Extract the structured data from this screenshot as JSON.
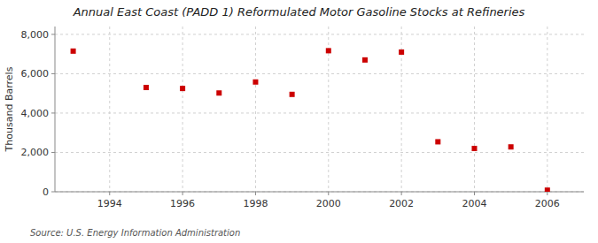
{
  "chart_data": {
    "type": "scatter",
    "title": "Annual East Coast (PADD 1) Reformulated Motor Gasoline Stocks at Refineries",
    "y_label": "Thousand Barrels",
    "source": "Source: U.S. Energy Information Administration",
    "x": [
      1993,
      1995,
      1996,
      1997,
      1998,
      1999,
      2000,
      2001,
      2002,
      2003,
      2004,
      2005,
      2006
    ],
    "values": [
      7150,
      5300,
      5250,
      5020,
      5580,
      4950,
      7170,
      6700,
      7100,
      2540,
      2200,
      2280,
      80
    ],
    "color": "#cc0000",
    "marker": "square",
    "xlim": [
      1992.5,
      2007
    ],
    "xticks": [
      1994,
      1996,
      1998,
      2000,
      2002,
      2004,
      2006
    ],
    "ylim": [
      0,
      8400
    ],
    "yticks": [
      0,
      {
        "value": 2000,
        "label": "2,000"
      },
      {
        "value": 4000,
        "label": "4,000"
      },
      {
        "value": 6000,
        "label": "6,000"
      },
      {
        "value": 8000,
        "label": "8,000"
      }
    ],
    "grid": true
  }
}
